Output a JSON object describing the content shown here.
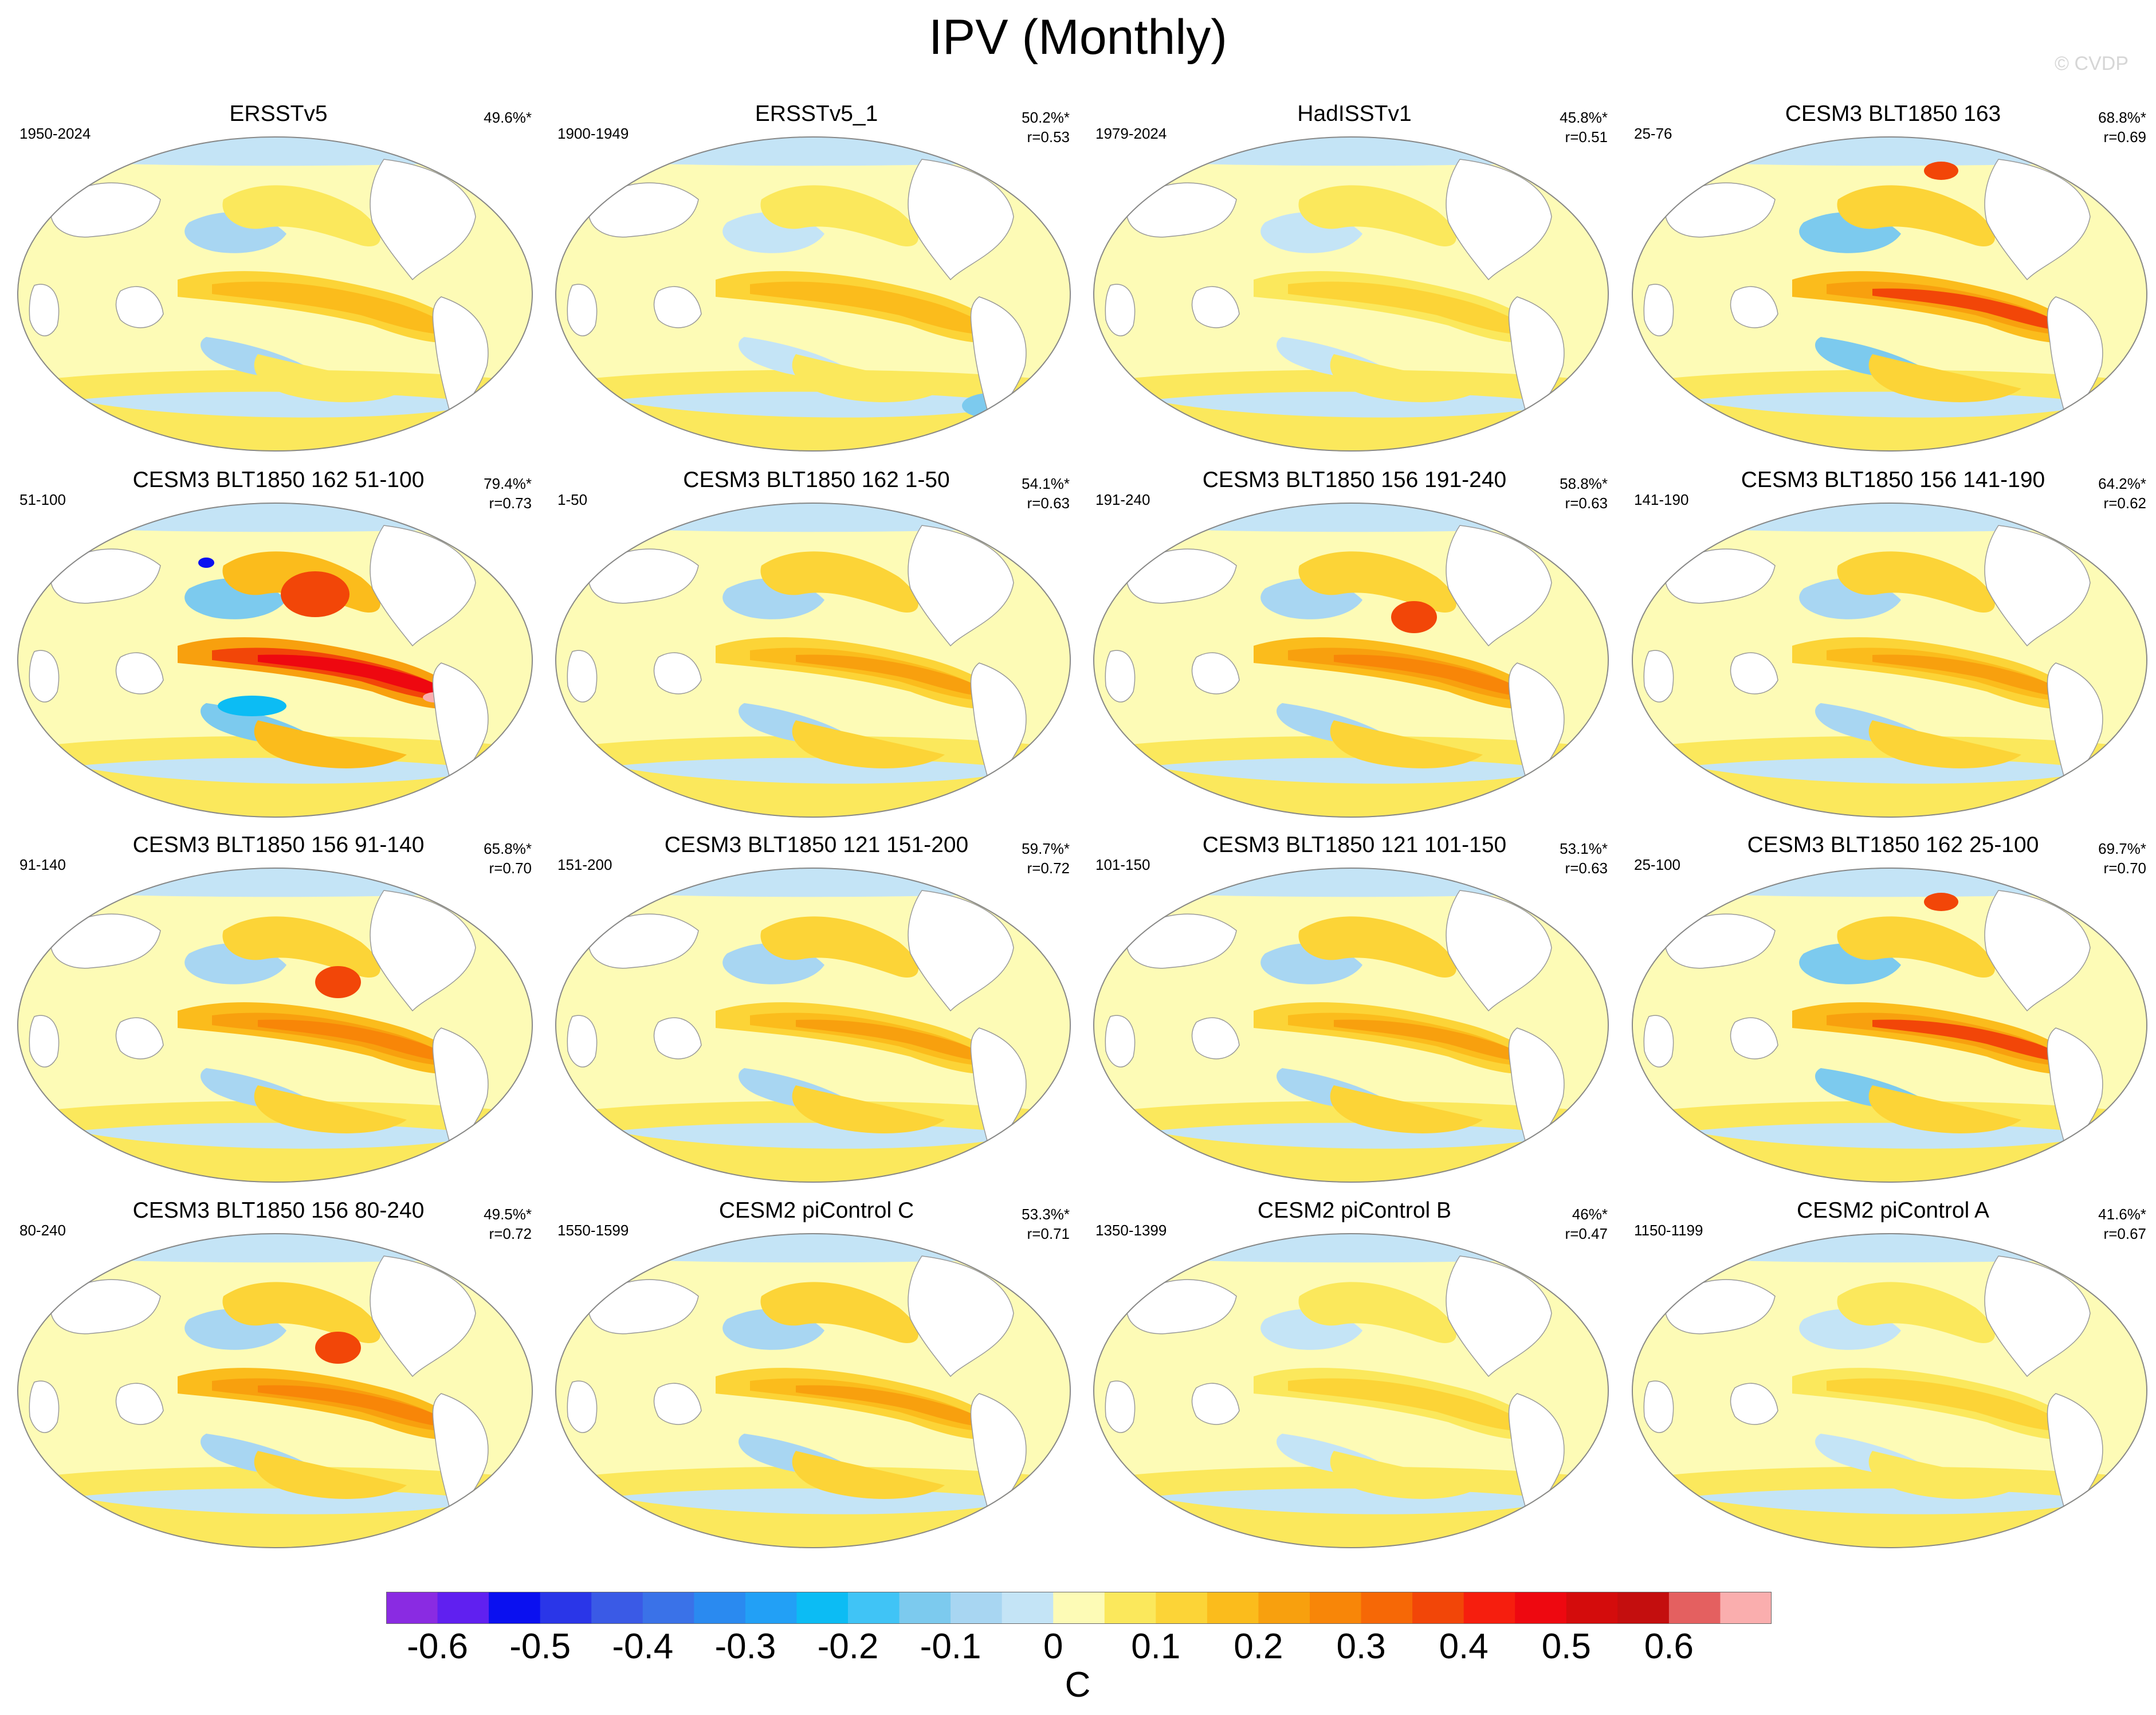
{
  "figure": {
    "title": "IPV (Monthly)",
    "watermark": "© CVDP"
  },
  "panels": [
    {
      "title": "ERSSTv5",
      "years": "1950-2024",
      "pct": "49.6%*",
      "r": "",
      "pattern": "obs_a"
    },
    {
      "title": "ERSSTv5_1",
      "years": "1900-1949",
      "pct": "50.2%*",
      "r": "r=0.53",
      "pattern": "obs_b"
    },
    {
      "title": "HadISSTv1",
      "years": "1979-2024",
      "pct": "45.8%*",
      "r": "r=0.51",
      "pattern": "obs_c"
    },
    {
      "title": "CESM3 BLT1850 163",
      "years": "25-76",
      "pct": "68.8%*",
      "r": "r=0.69",
      "pattern": "strong_b"
    },
    {
      "title": "CESM3 BLT1850 162 51-100",
      "years": "51-100",
      "pct": "79.4%*",
      "r": "r=0.73",
      "pattern": "strongest"
    },
    {
      "title": "CESM3 BLT1850 162 1-50",
      "years": "1-50",
      "pct": "54.1%*",
      "r": "r=0.63",
      "pattern": "moderate"
    },
    {
      "title": "CESM3 BLT1850 156 191-240",
      "years": "191-240",
      "pct": "58.8%*",
      "r": "r=0.63",
      "pattern": "strong_a"
    },
    {
      "title": "CESM3 BLT1850 156 141-190",
      "years": "141-190",
      "pct": "64.2%*",
      "r": "r=0.62",
      "pattern": "moderate"
    },
    {
      "title": "CESM3 BLT1850 156 91-140",
      "years": "91-140",
      "pct": "65.8%*",
      "r": "r=0.70",
      "pattern": "strong_a"
    },
    {
      "title": "CESM3 BLT1850 121 151-200",
      "years": "151-200",
      "pct": "59.7%*",
      "r": "r=0.72",
      "pattern": "moderate"
    },
    {
      "title": "CESM3 BLT1850 121 101-150",
      "years": "101-150",
      "pct": "53.1%*",
      "r": "r=0.63",
      "pattern": "moderate"
    },
    {
      "title": "CESM3 BLT1850 162 25-100",
      "years": "25-100",
      "pct": "69.7%*",
      "r": "r=0.70",
      "pattern": "strong_b"
    },
    {
      "title": "CESM3 BLT1850 156 80-240",
      "years": "80-240",
      "pct": "49.5%*",
      "r": "r=0.72",
      "pattern": "strong_a"
    },
    {
      "title": "CESM2 piControl C",
      "years": "1550-1599",
      "pct": "53.3%*",
      "r": "r=0.71",
      "pattern": "moderate"
    },
    {
      "title": "CESM2 piControl B",
      "years": "1350-1399",
      "pct": "46%*",
      "r": "r=0.47",
      "pattern": "weak"
    },
    {
      "title": "CESM2 piControl A",
      "years": "1150-1199",
      "pct": "41.6%*",
      "r": "r=0.67",
      "pattern": "weak"
    }
  ],
  "colorbar": {
    "colors": [
      "#8a2be2",
      "#6020f0",
      "#0a10f0",
      "#2a36e8",
      "#3a5ae6",
      "#3a72e8",
      "#2a8af0",
      "#22a0f6",
      "#0cbcf4",
      "#40c4f6",
      "#7ccaee",
      "#a8d6f2",
      "#c4e4f6",
      "#fdfbb6",
      "#fbe85c",
      "#fcd437",
      "#fbbc1c",
      "#f8a00e",
      "#f88608",
      "#f66806",
      "#f24608",
      "#f61e0e",
      "#ee0810",
      "#d40c0c",
      "#c40e0e",
      "#e46060",
      "#faaeae"
    ],
    "ticks": [
      "-0.6",
      "-0.5",
      "-0.4",
      "-0.3",
      "-0.2",
      "-0.1",
      "0",
      "0.1",
      "0.2",
      "0.3",
      "0.4",
      "0.5",
      "0.6"
    ],
    "units": "C"
  }
}
